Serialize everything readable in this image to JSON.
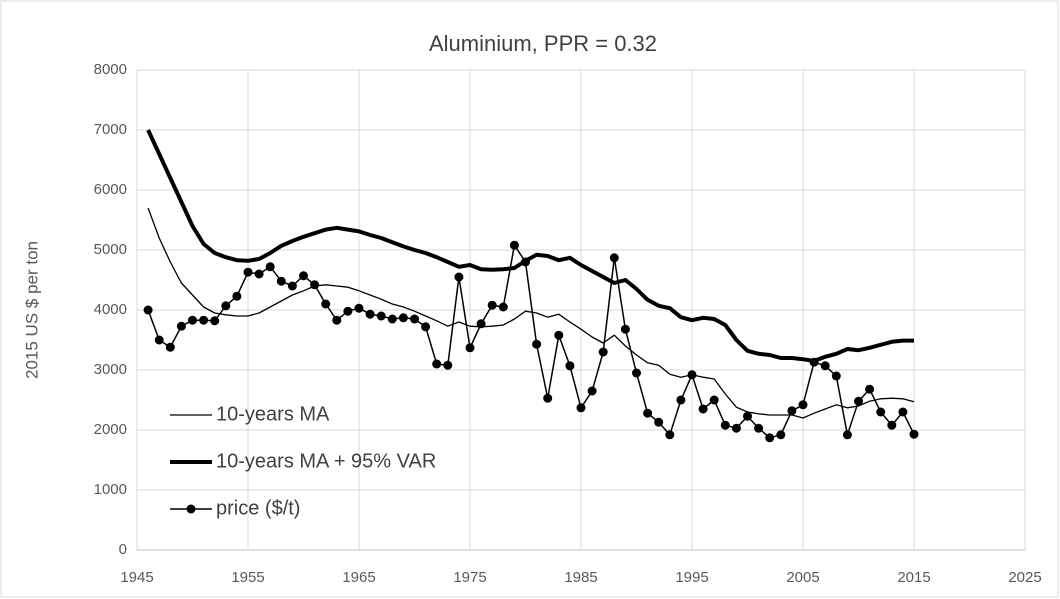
{
  "chart_data": {
    "type": "line",
    "title": "Aluminium, PPR  = 0.32",
    "y_label": "2015 US $ per ton",
    "x": [
      1946,
      1947,
      1948,
      1949,
      1950,
      1951,
      1952,
      1953,
      1954,
      1955,
      1956,
      1957,
      1958,
      1959,
      1960,
      1961,
      1962,
      1963,
      1964,
      1965,
      1966,
      1967,
      1968,
      1969,
      1970,
      1971,
      1972,
      1973,
      1974,
      1975,
      1976,
      1977,
      1978,
      1979,
      1980,
      1981,
      1982,
      1983,
      1984,
      1985,
      1986,
      1987,
      1988,
      1989,
      1990,
      1991,
      1992,
      1993,
      1994,
      1995,
      1996,
      1997,
      1998,
      1999,
      2000,
      2001,
      2002,
      2003,
      2004,
      2005,
      2006,
      2007,
      2008,
      2009,
      2010,
      2011,
      2012,
      2013,
      2014,
      2015
    ],
    "series": [
      {
        "name": "10-years MA",
        "color": "#000000",
        "line_width": 1.3,
        "markers": false,
        "values": [
          5700,
          5200,
          4800,
          4450,
          4250,
          4050,
          3950,
          3920,
          3900,
          3900,
          3950,
          4050,
          4150,
          4250,
          4320,
          4400,
          4420,
          4400,
          4380,
          4320,
          4250,
          4180,
          4100,
          4050,
          3980,
          3900,
          3820,
          3730,
          3800,
          3730,
          3720,
          3730,
          3750,
          3850,
          3980,
          3950,
          3880,
          3930,
          3800,
          3680,
          3550,
          3450,
          3580,
          3400,
          3250,
          3120,
          3080,
          2930,
          2880,
          2920,
          2880,
          2850,
          2600,
          2380,
          2300,
          2270,
          2250,
          2250,
          2250,
          2200,
          2280,
          2350,
          2420,
          2370,
          2400,
          2480,
          2520,
          2530,
          2520,
          2470
        ]
      },
      {
        "name": "10-years MA + 95% VAR",
        "color": "#000000",
        "line_width": 4,
        "markers": false,
        "values": [
          7000,
          6600,
          6200,
          5800,
          5400,
          5100,
          4950,
          4880,
          4830,
          4820,
          4850,
          4950,
          5070,
          5150,
          5220,
          5280,
          5340,
          5370,
          5340,
          5310,
          5250,
          5200,
          5130,
          5060,
          5000,
          4950,
          4880,
          4800,
          4720,
          4750,
          4680,
          4670,
          4680,
          4700,
          4820,
          4920,
          4900,
          4830,
          4870,
          4750,
          4650,
          4550,
          4450,
          4500,
          4350,
          4170,
          4070,
          4030,
          3880,
          3830,
          3870,
          3850,
          3750,
          3500,
          3320,
          3270,
          3250,
          3200,
          3200,
          3180,
          3150,
          3220,
          3270,
          3350,
          3330,
          3370,
          3420,
          3470,
          3490,
          3490
        ]
      },
      {
        "name": "price ($/t)",
        "color": "#000000",
        "line_width": 1.5,
        "markers": true,
        "values": [
          4000,
          3500,
          3380,
          3730,
          3830,
          3830,
          3820,
          4070,
          4230,
          4630,
          4600,
          4720,
          4480,
          4400,
          4570,
          4420,
          4100,
          3830,
          3980,
          4030,
          3930,
          3900,
          3850,
          3870,
          3850,
          3720,
          3100,
          3080,
          4550,
          3370,
          3770,
          4080,
          4050,
          5080,
          4800,
          3430,
          2530,
          3580,
          3070,
          2370,
          2650,
          3300,
          4870,
          3680,
          2950,
          2280,
          2130,
          1920,
          2500,
          2920,
          2350,
          2500,
          2080,
          2030,
          2230,
          2030,
          1870,
          1920,
          2320,
          2420,
          3130,
          3070,
          2900,
          1920,
          2480,
          2680,
          2300,
          2080,
          2300,
          1930
        ]
      }
    ],
    "xlim": [
      1945,
      2025
    ],
    "xticks": [
      1945,
      1955,
      1965,
      1975,
      1985,
      1995,
      2005,
      2015,
      2025
    ],
    "ylim": [
      0,
      8000
    ],
    "yticks": [
      0,
      1000,
      2000,
      3000,
      4000,
      5000,
      6000,
      7000,
      8000
    ],
    "grid": true,
    "legend": "lower left"
  }
}
